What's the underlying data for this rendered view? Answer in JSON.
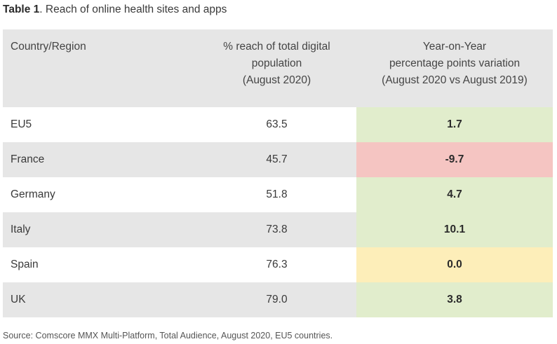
{
  "caption": {
    "bold": "Table 1",
    "rest": ". Reach of online health sites and apps"
  },
  "headers": {
    "col1": "Country/Region",
    "col2": [
      "% reach of total digital",
      "population",
      "(August 2020)"
    ],
    "col3": [
      "Year-on-Year",
      "percentage points variation",
      "(August 2020 vs August 2019)"
    ]
  },
  "rows": [
    {
      "region": "EU5",
      "reach": "63.5",
      "yoy": "1.7",
      "color": "#e1edcc"
    },
    {
      "region": "France",
      "reach": "45.7",
      "yoy": "-9.7",
      "color": "#f5c5c2"
    },
    {
      "region": "Germany",
      "reach": "51.8",
      "yoy": "4.7",
      "color": "#e1edcc"
    },
    {
      "region": "Italy",
      "reach": "73.8",
      "yoy": "10.1",
      "color": "#e1edcc"
    },
    {
      "region": "Spain",
      "reach": "76.3",
      "yoy": "0.0",
      "color": "#fdeeb9"
    },
    {
      "region": "UK",
      "reach": "79.0",
      "yoy": "3.8",
      "color": "#e1edcc"
    }
  ],
  "source": "Source: Comscore MMX Multi-Platform, Total Audience, August 2020, EU5 countries."
}
